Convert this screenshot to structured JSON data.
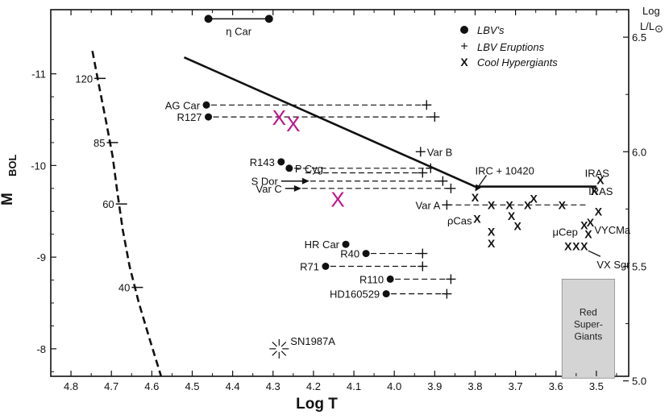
{
  "colors": {
    "ink": "#111111",
    "magenta": "#c0128c",
    "rsg_fill": "#d4d4d4"
  },
  "chart_data": {
    "type": "scatter",
    "title": "",
    "xlabel": "Log T",
    "ylabel_main": "M",
    "ylabel_sub": "BOL",
    "right_label_top": "Log",
    "right_label_bottom": "L/L",
    "right_label_symbol": "⊙",
    "xlim": [
      4.85,
      3.42
    ],
    "ylim": [
      -7.7,
      -11.7
    ],
    "x_ticks": [
      4.8,
      4.7,
      4.6,
      4.5,
      4.4,
      4.3,
      4.2,
      4.1,
      4.0,
      3.9,
      3.8,
      3.7,
      3.6,
      3.5
    ],
    "x_tick_labels": [
      "4.8",
      "4.7",
      "4.6",
      "4.5",
      "4.4",
      "4.3",
      "4.2",
      "4.1",
      "4.0",
      "3.9",
      "3.8",
      "3.7",
      "3.6",
      "3.5"
    ],
    "y_ticks": [
      -11,
      -10,
      -9,
      -8
    ],
    "y_tick_labels": [
      "-11",
      "-10",
      "-9",
      "-8"
    ],
    "right_ticks": [
      {
        "mbol": -11.4,
        "label": "6.5"
      },
      {
        "mbol": -10.15,
        "label": "6.0"
      },
      {
        "mbol": -8.9,
        "label": "5.5"
      },
      {
        "mbol": -7.65,
        "label": "5.0"
      }
    ],
    "legend": {
      "lbv": "LBV's",
      "eruptions": "LBV Eruptions",
      "cool": "Cool Hypergiants",
      "eruption_glyph": "+",
      "cool_glyph": "X"
    },
    "eta_car": {
      "label": "η Car",
      "x1": 4.46,
      "x2": 4.31,
      "mbol": -11.6
    },
    "hd_limit": [
      {
        "x": 4.52,
        "mbol": -11.18
      },
      {
        "x": 3.8,
        "mbol": -9.77
      },
      {
        "x": 3.5,
        "mbol": -9.77
      }
    ],
    "zams": {
      "points": [
        {
          "x": 4.747,
          "mbol": -11.25
        },
        {
          "x": 4.732,
          "mbol": -10.9
        },
        {
          "x": 4.714,
          "mbol": -10.5
        },
        {
          "x": 4.697,
          "mbol": -10.1
        },
        {
          "x": 4.685,
          "mbol": -9.7
        },
        {
          "x": 4.672,
          "mbol": -9.3
        },
        {
          "x": 4.655,
          "mbol": -8.9
        },
        {
          "x": 4.632,
          "mbol": -8.5
        },
        {
          "x": 4.605,
          "mbol": -8.1
        },
        {
          "x": 4.577,
          "mbol": -7.7
        }
      ],
      "masses": [
        {
          "label": "120",
          "mbol": -10.95
        },
        {
          "label": "85",
          "mbol": -10.25
        },
        {
          "label": "60",
          "mbol": -9.58
        },
        {
          "label": "40",
          "mbol": -8.67
        }
      ]
    },
    "lbvs": [
      {
        "name": "AG Car",
        "x": 4.465,
        "mbol": -10.66,
        "erupt_x": 3.92,
        "label_side": "left"
      },
      {
        "name": "R127",
        "x": 4.46,
        "mbol": -10.53,
        "erupt_x": 3.9,
        "label_side": "left"
      },
      {
        "name": "R143",
        "x": 4.28,
        "mbol": -10.04,
        "erupt_x": null,
        "label_side": "left"
      },
      {
        "name": "P Cyg",
        "x": 4.26,
        "mbol": -9.97,
        "erupt_x": 3.91,
        "label_side": "right"
      },
      {
        "name": "HR Car",
        "x": 4.12,
        "mbol": -9.14,
        "erupt_x": null,
        "label_side": "left"
      },
      {
        "name": "R40",
        "x": 4.07,
        "mbol": -9.04,
        "erupt_x": 3.93,
        "label_side": "left"
      },
      {
        "name": "R71",
        "x": 4.17,
        "mbol": -8.9,
        "erupt_x": 3.93,
        "label_side": "left"
      },
      {
        "name": "R110",
        "x": 4.01,
        "mbol": -8.76,
        "erupt_x": 3.86,
        "label_side": "left"
      },
      {
        "name": "HD160529",
        "x": 4.02,
        "mbol": -8.6,
        "erupt_x": 3.87,
        "label_side": "left"
      }
    ],
    "arrow_stars": [
      {
        "name": "S Dor",
        "x": 4.28,
        "mbol": -9.83,
        "arrow_to": 4.22,
        "erupt_x": 3.88
      },
      {
        "name": "Var C",
        "x": 4.27,
        "mbol": -9.75,
        "arrow_to": 4.24,
        "erupt_x": 3.86
      }
    ],
    "var_b": {
      "name": "Var B",
      "x_start": 4.22,
      "mbol": -9.92,
      "erupt_x": 3.93,
      "plus_x": 3.935,
      "plus_mbol": -10.15
    },
    "var_a": {
      "name": "Var A",
      "x_start": 3.87,
      "x_end": 3.52,
      "mbol": -9.57
    },
    "cool_hypergiants": [
      {
        "x": 3.8,
        "mbol": -9.65
      },
      {
        "x": 3.76,
        "mbol": -9.57
      },
      {
        "x": 3.795,
        "mbol": -9.42
      },
      {
        "x": 3.76,
        "mbol": -9.28
      },
      {
        "x": 3.76,
        "mbol": -9.15
      },
      {
        "x": 3.715,
        "mbol": -9.57
      },
      {
        "x": 3.71,
        "mbol": -9.45
      },
      {
        "x": 3.695,
        "mbol": -9.34
      },
      {
        "x": 3.67,
        "mbol": -9.57
      },
      {
        "x": 3.655,
        "mbol": -9.64
      },
      {
        "x": 3.585,
        "mbol": -9.57
      },
      {
        "x": 3.57,
        "mbol": -9.12
      },
      {
        "x": 3.55,
        "mbol": -9.12
      },
      {
        "x": 3.53,
        "mbol": -9.12
      },
      {
        "x": 3.52,
        "mbol": -9.25
      },
      {
        "x": 3.505,
        "mbol": -9.72
      },
      {
        "x": 3.495,
        "mbol": -9.5
      },
      {
        "x": 3.49,
        "mbol": -9.84
      },
      {
        "x": 3.53,
        "mbol": -9.35
      },
      {
        "x": 3.515,
        "mbol": -9.38
      }
    ],
    "magenta_x": [
      {
        "x": 4.285,
        "mbol": -10.52
      },
      {
        "x": 4.25,
        "mbol": -10.45
      },
      {
        "x": 4.14,
        "mbol": -9.63
      }
    ],
    "annotations": {
      "irc_label": "IRC + 10420",
      "irc_x": 3.8,
      "irc_mbol": -9.7,
      "iras1": "IRAS",
      "iras2": "IRAS",
      "rhocas": "ρCas",
      "mucep": "μCep",
      "vycma": "VYCMa",
      "vxsgr": "VX Sgr",
      "sn_label": "SN1987A",
      "sn_x": 4.285,
      "sn_mbol": -8.0,
      "rsg_lines": [
        "Red",
        "Super-",
        "Giants"
      ]
    },
    "rsg_box": {
      "x_left": 3.585,
      "x_right": 3.455,
      "mbol_top": -8.76,
      "mbol_bottom": -7.68
    }
  }
}
